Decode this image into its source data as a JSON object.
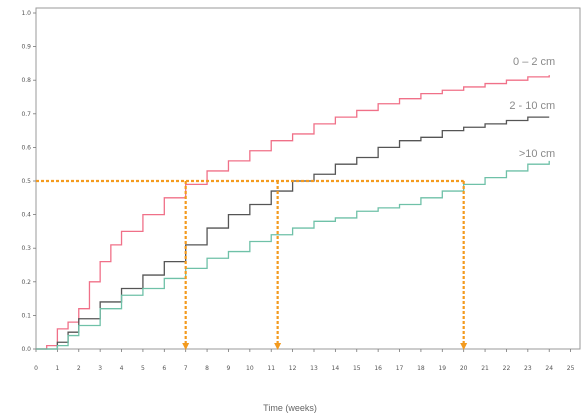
{
  "chart_data": {
    "type": "line",
    "title": "",
    "xlabel": "Time (weeks)",
    "ylabel": "",
    "xlim": [
      0,
      25
    ],
    "ylim": [
      0,
      1
    ],
    "x_ticks": [
      0,
      1,
      2,
      3,
      4,
      5,
      6,
      7,
      8,
      9,
      10,
      11,
      12,
      13,
      14,
      15,
      16,
      17,
      18,
      19,
      20,
      21,
      22,
      23,
      24,
      25
    ],
    "y_ticks": [
      "0.0",
      "0.1",
      "0.2",
      "0.3",
      "0.4",
      "0.5",
      "0.6",
      "0.7",
      "0.8",
      "0.9",
      "1.0"
    ],
    "grid": false,
    "legend": "inline labels at line ends",
    "series": [
      {
        "name": "0 – 2 cm",
        "color": "#f07088",
        "points": [
          [
            0,
            0
          ],
          [
            0.5,
            0.01
          ],
          [
            1,
            0.06
          ],
          [
            1.5,
            0.08
          ],
          [
            2,
            0.12
          ],
          [
            2.5,
            0.2
          ],
          [
            3,
            0.26
          ],
          [
            3.5,
            0.31
          ],
          [
            4,
            0.35
          ],
          [
            5,
            0.4
          ],
          [
            6,
            0.45
          ],
          [
            7,
            0.49
          ],
          [
            8,
            0.53
          ],
          [
            9,
            0.56
          ],
          [
            10,
            0.59
          ],
          [
            11,
            0.62
          ],
          [
            12,
            0.64
          ],
          [
            13,
            0.67
          ],
          [
            14,
            0.69
          ],
          [
            15,
            0.71
          ],
          [
            16,
            0.73
          ],
          [
            17,
            0.745
          ],
          [
            18,
            0.76
          ],
          [
            19,
            0.77
          ],
          [
            20,
            0.78
          ],
          [
            21,
            0.79
          ],
          [
            22,
            0.8
          ],
          [
            23,
            0.81
          ],
          [
            24,
            0.815
          ]
        ]
      },
      {
        "name": "2 - 10 cm",
        "color": "#555555",
        "points": [
          [
            0,
            0
          ],
          [
            1,
            0.02
          ],
          [
            1.5,
            0.05
          ],
          [
            2,
            0.09
          ],
          [
            3,
            0.14
          ],
          [
            4,
            0.18
          ],
          [
            5,
            0.22
          ],
          [
            6,
            0.26
          ],
          [
            7,
            0.31
          ],
          [
            8,
            0.36
          ],
          [
            9,
            0.4
          ],
          [
            10,
            0.43
          ],
          [
            11,
            0.47
          ],
          [
            12,
            0.5
          ],
          [
            13,
            0.52
          ],
          [
            14,
            0.55
          ],
          [
            15,
            0.57
          ],
          [
            16,
            0.6
          ],
          [
            17,
            0.62
          ],
          [
            18,
            0.63
          ],
          [
            19,
            0.65
          ],
          [
            20,
            0.66
          ],
          [
            21,
            0.67
          ],
          [
            22,
            0.68
          ],
          [
            23,
            0.69
          ],
          [
            24,
            0.69
          ]
        ]
      },
      {
        "name": ">10 cm",
        "color": "#6fc1a8",
        "points": [
          [
            0,
            0
          ],
          [
            1,
            0.01
          ],
          [
            1.5,
            0.04
          ],
          [
            2,
            0.07
          ],
          [
            3,
            0.12
          ],
          [
            4,
            0.16
          ],
          [
            5,
            0.18
          ],
          [
            6,
            0.21
          ],
          [
            7,
            0.24
          ],
          [
            8,
            0.27
          ],
          [
            9,
            0.29
          ],
          [
            10,
            0.32
          ],
          [
            11,
            0.34
          ],
          [
            12,
            0.36
          ],
          [
            13,
            0.38
          ],
          [
            14,
            0.39
          ],
          [
            15,
            0.41
          ],
          [
            16,
            0.42
          ],
          [
            17,
            0.43
          ],
          [
            18,
            0.45
          ],
          [
            19,
            0.47
          ],
          [
            20,
            0.49
          ],
          [
            21,
            0.51
          ],
          [
            22,
            0.53
          ],
          [
            23,
            0.55
          ],
          [
            24,
            0.56
          ]
        ]
      }
    ],
    "reference_lines": {
      "color": "#f39a1e",
      "y": 0.5,
      "x_drops": [
        7,
        11.3,
        20
      ]
    }
  }
}
